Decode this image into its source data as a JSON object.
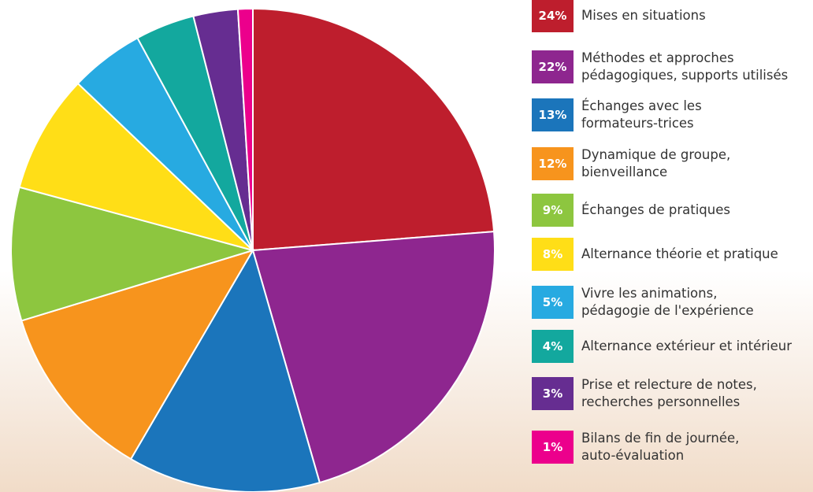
{
  "chart_data": {
    "type": "pie",
    "categories": [
      "Mises en situations",
      "Méthodes et approches\npédagogiques,  supports utilisés",
      "Échanges avec les\nformateurs-trices",
      "Dynamique de groupe,\nbienveillance",
      "Échanges de pratiques",
      "Alternance théorie et pratique",
      "Vivre les animations,\npédagogie de l'expérience",
      "Alternance extérieur et intérieur",
      "Prise et relecture de notes,\nrecherches personnelles",
      "Bilans de fin de journée,\nauto-évaluation"
    ],
    "values": [
      24,
      22,
      13,
      12,
      9,
      8,
      5,
      4,
      3,
      1
    ],
    "value_labels": [
      "24%",
      "22%",
      "13%",
      "12%",
      "9%",
      "8%",
      "5%",
      "4%",
      "3%",
      "1%"
    ],
    "colors": [
      "#be1e2d",
      "#8e268f",
      "#1b75bb",
      "#f7941d",
      "#8dc63f",
      "#ffde17",
      "#27aae1",
      "#13a89e",
      "#662d91",
      "#ec008c"
    ]
  }
}
